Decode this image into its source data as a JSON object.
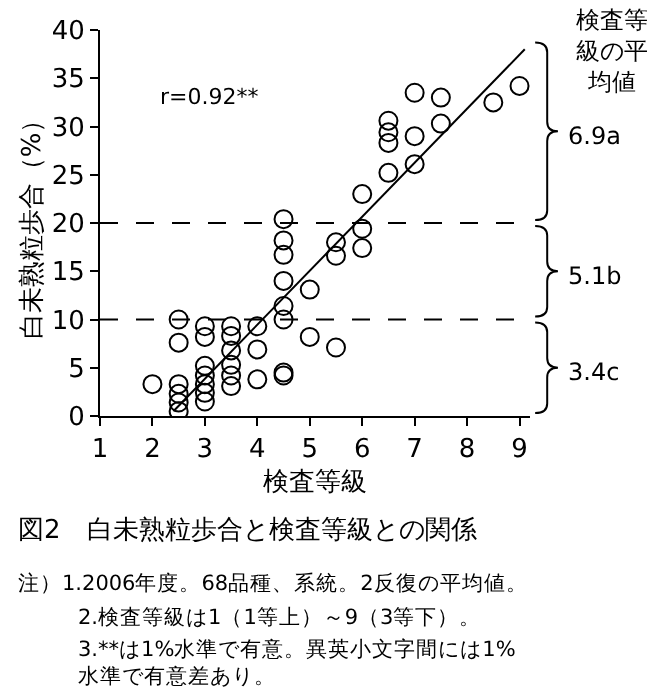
{
  "chart_data": {
    "type": "scatter",
    "title": "図2　白未熟粒歩合と検査等級との関係",
    "xlabel": "検査等級",
    "ylabel": "白未熟粒歩合（%）",
    "xlim": [
      1,
      9.2
    ],
    "xticks": [
      1,
      2,
      3,
      4,
      5,
      6,
      7,
      8,
      9
    ],
    "ylim": [
      0,
      40
    ],
    "yticks": [
      0,
      5,
      10,
      15,
      20,
      25,
      30,
      35,
      40
    ],
    "marker": "circle",
    "series": [
      {
        "color": "#000000",
        "x": [
          2.0,
          2.5,
          2.5,
          2.5,
          2.5,
          2.5,
          2.5,
          3.0,
          3.0,
          3.0,
          3.0,
          3.0,
          3.0,
          3.0,
          3.5,
          3.5,
          3.5,
          3.5,
          3.5,
          3.5,
          4.0,
          4.0,
          4.0,
          4.5,
          4.5,
          4.5,
          4.5,
          4.5,
          4.5,
          4.5,
          4.5,
          5.0,
          5.0,
          5.5,
          5.5,
          5.5,
          6.0,
          6.0,
          6.0,
          6.5,
          6.5,
          6.5,
          6.5,
          7.0,
          7.0,
          7.0,
          7.5,
          7.5,
          8.5,
          9.0
        ],
        "values": [
          3.3,
          10.0,
          7.6,
          3.3,
          2.3,
          1.4,
          0.5,
          9.3,
          8.2,
          5.2,
          4.2,
          3.3,
          2.4,
          1.5,
          9.3,
          8.3,
          6.8,
          5.3,
          4.2,
          3.1,
          9.3,
          6.9,
          3.8,
          20.4,
          18.2,
          16.7,
          14.0,
          11.4,
          10.0,
          4.5,
          4.2,
          13.1,
          8.2,
          18.0,
          16.6,
          7.1,
          23.0,
          19.4,
          17.4,
          30.6,
          29.4,
          28.3,
          25.2,
          33.5,
          29.0,
          26.1,
          33.0,
          30.3,
          32.5,
          34.2
        ]
      },
      {
        "type": "line",
        "marker": "none",
        "color": "#000000",
        "x": [
          2.4,
          9.1
        ],
        "values": [
          0.5,
          38.0
        ]
      }
    ],
    "ref_lines": [
      {
        "axis": "y",
        "value": 10,
        "line_style": "dashed",
        "color": "#000000"
      },
      {
        "axis": "y",
        "value": 20,
        "line_style": "dashed",
        "color": "#000000"
      }
    ],
    "legend_title": "検査等級の平均値",
    "annotations": [
      "6.9a",
      "5.1b",
      "3.4c",
      "r=0.92**",
      "注）1.2006年度。68品種、系統。2反復の平均値。",
      "2.検査等級は1（1等上）～9（3等下）。",
      "3.**は1%水準で有意。異英小文字間には1%\n水準で有意差あり。"
    ]
  }
}
